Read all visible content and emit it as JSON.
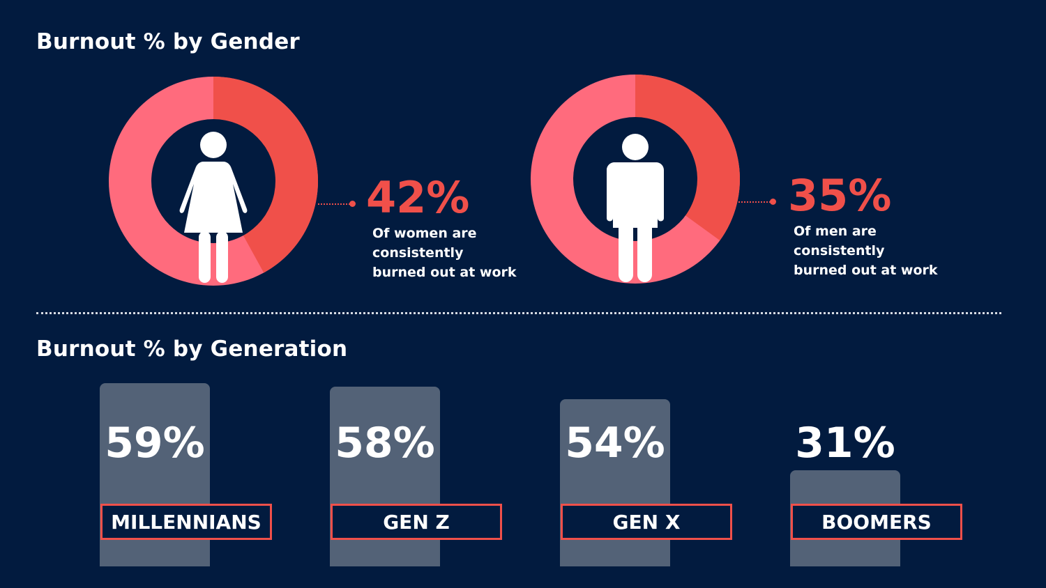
{
  "chart_data": [
    {
      "type": "pie",
      "title": "Burnout % by Gender",
      "slices": [
        {
          "group": "women",
          "icon": "woman-icon",
          "value": 42,
          "value_label": "42%",
          "caption": "Of women are consistently burned out at work"
        },
        {
          "group": "men",
          "icon": "man-icon",
          "value": 35,
          "value_label": "35%",
          "caption": "Of men are consistently burned out at work"
        }
      ]
    },
    {
      "type": "bar",
      "title": "Burnout % by Generation",
      "categories": [
        "MILLENNIANS",
        "GEN Z",
        "GEN X",
        "BOOMERS"
      ],
      "values": [
        59,
        58,
        54,
        31
      ],
      "value_labels": [
        "59%",
        "58%",
        "54%",
        "31%"
      ]
    }
  ],
  "colors": {
    "background": "#021B3F",
    "accent": "#F0504A",
    "donut_remainder": "#FF6B7D",
    "bar": "#536277",
    "text": "#FFFFFF"
  }
}
